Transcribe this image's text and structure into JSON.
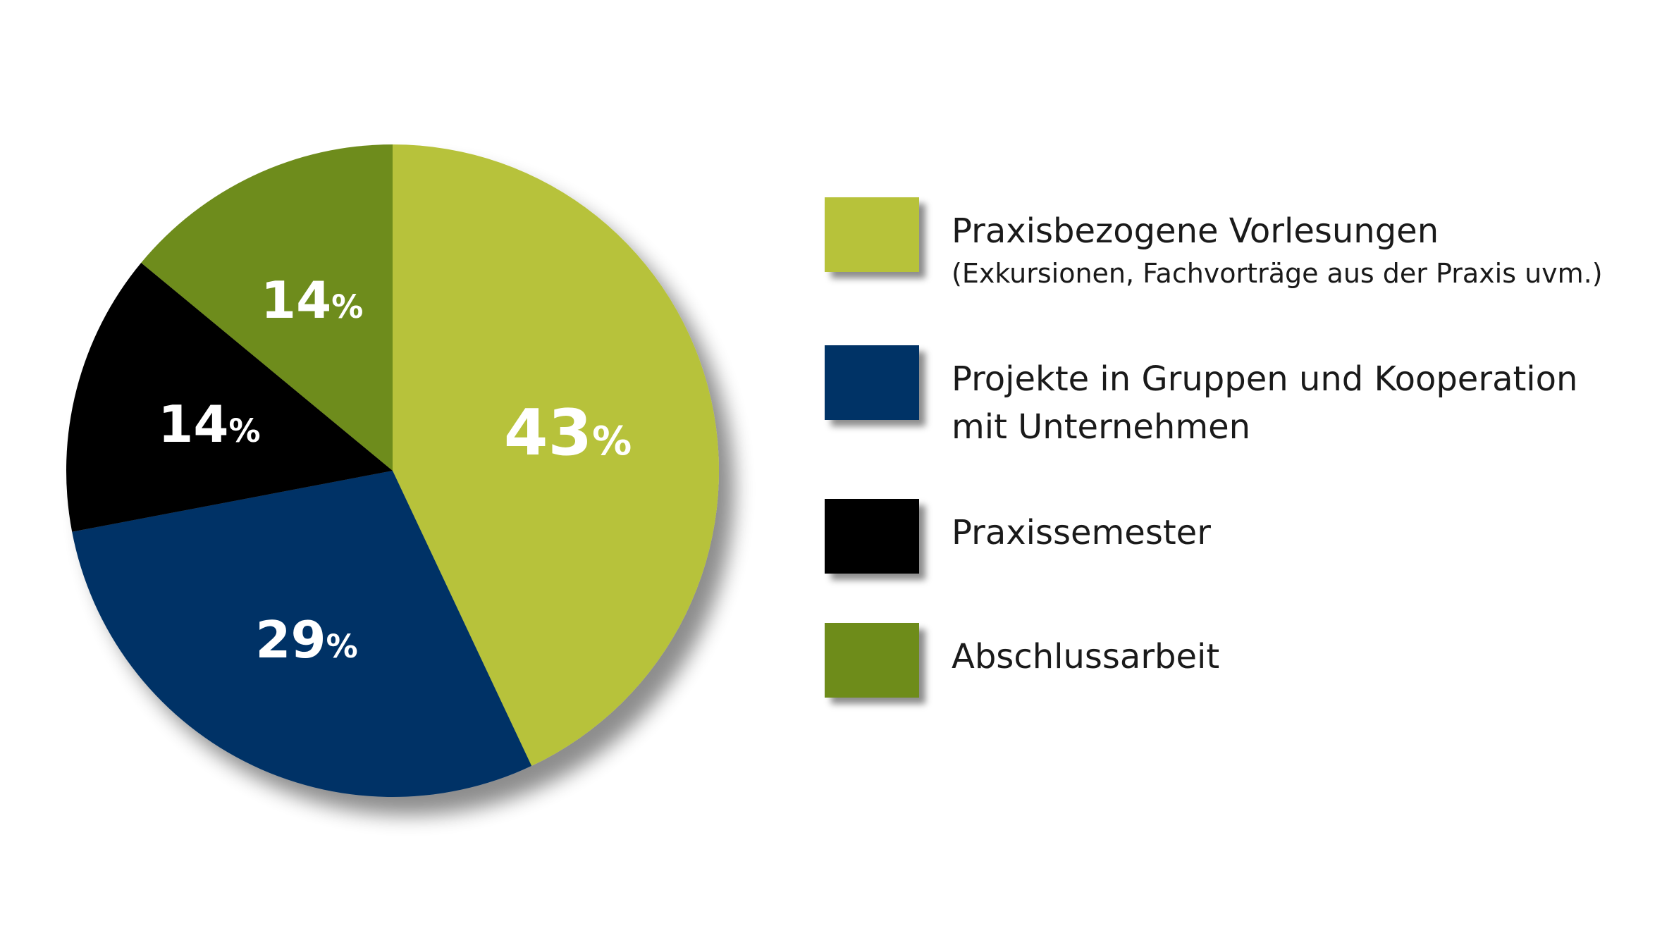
{
  "chart_data": {
    "type": "pie",
    "title": "",
    "slices": [
      {
        "label": "Praxisbezogene Vorlesungen",
        "sublabel": "(Exkursionen, Fachvorträge aus der Praxis uvm.)",
        "value": 43,
        "display_value": "43",
        "unit": "%",
        "color": "#b7c23a"
      },
      {
        "label": "Projekte in Gruppen und Kooperation mit Unternehmen",
        "sublabel": "",
        "value": 29,
        "display_value": "29",
        "unit": "%",
        "color": "#003366"
      },
      {
        "label": "Praxissemester",
        "sublabel": "",
        "value": 14,
        "display_value": "14",
        "unit": "%",
        "color": "#000000"
      },
      {
        "label": "Abschlussarbeit",
        "sublabel": "",
        "value": 14,
        "display_value": "14",
        "unit": "%",
        "color": "#6e8c1a"
      }
    ],
    "start_angle_deg": 0,
    "direction": "clockwise",
    "legend_position": "right"
  },
  "legend": {
    "items": [
      {
        "line1": "Praxisbezogene Vorlesungen",
        "line2": "(Exkursionen, Fachvorträge aus der Praxis uvm.)"
      },
      {
        "line1": "Projekte in Gruppen und Kooperation",
        "line2": "mit Unternehmen"
      },
      {
        "line1": "Praxissemester",
        "line2": ""
      },
      {
        "line1": "Abschlussarbeit",
        "line2": ""
      }
    ]
  }
}
